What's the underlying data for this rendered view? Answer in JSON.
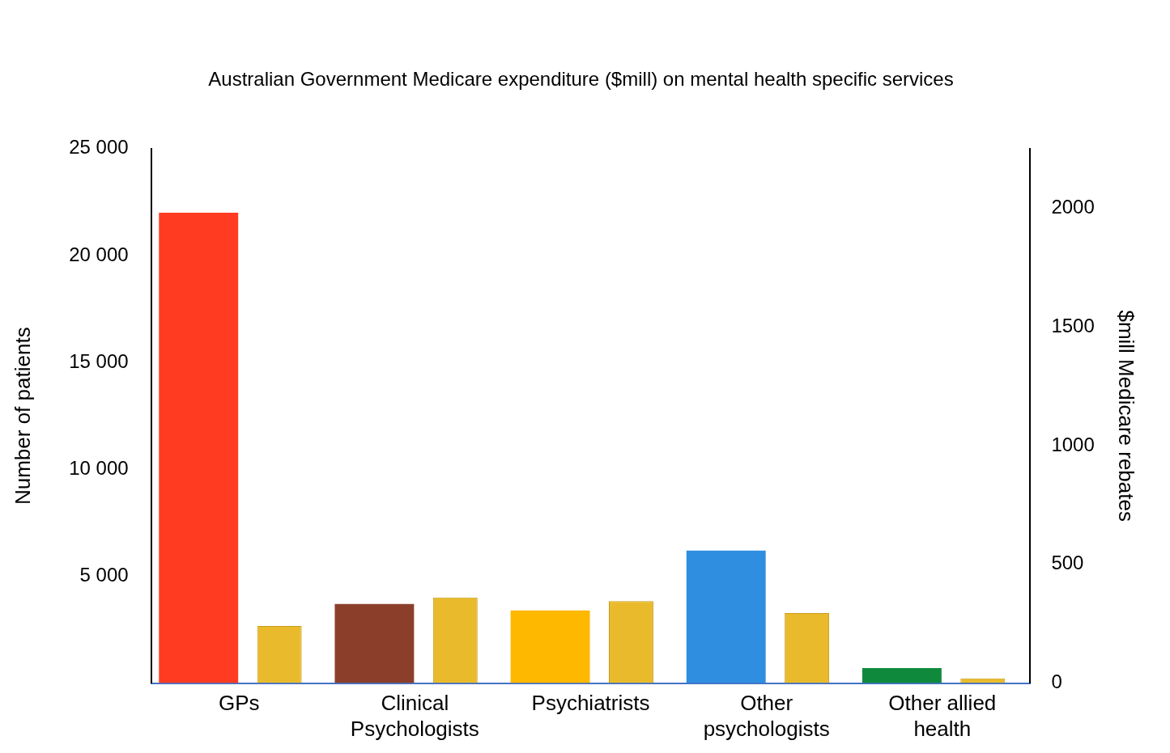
{
  "chart_data": {
    "type": "bar",
    "title": "Australian Government Medicare expenditure ($mill) on mental health specific services",
    "categories": [
      "GPs",
      "Clinical Psychologists",
      "Psychiatrists",
      "Other psychologists",
      "Other allied health"
    ],
    "series": [
      {
        "name": "Number of patients",
        "axis": "y",
        "colors": [
          "#ff3b22",
          "#8b3f2a",
          "#ffb800",
          "#2f8ee0",
          "#0f8a3c"
        ],
        "values": [
          22000,
          3700,
          3400,
          6200,
          700
        ]
      },
      {
        "name": "$mill Medicare rebates",
        "axis": "y2",
        "color": "#e9bb2c",
        "values": [
          240,
          360,
          345,
          295,
          20
        ]
      }
    ],
    "y_label": "Number of patients",
    "y2_label": "$mill Medicare rebates",
    "ylim": [
      0,
      25000
    ],
    "yticks": [
      {
        "value": 5000,
        "label": "5 000"
      },
      {
        "value": 10000,
        "label": "10 000"
      },
      {
        "value": 15000,
        "label": "15 000"
      },
      {
        "value": 20000,
        "label": "20 000"
      },
      {
        "value": 25000,
        "label": "25 000"
      }
    ],
    "y2lim": [
      0,
      2250
    ],
    "y2ticks": [
      0,
      500,
      1000,
      1500,
      2000
    ],
    "grid": false
  }
}
